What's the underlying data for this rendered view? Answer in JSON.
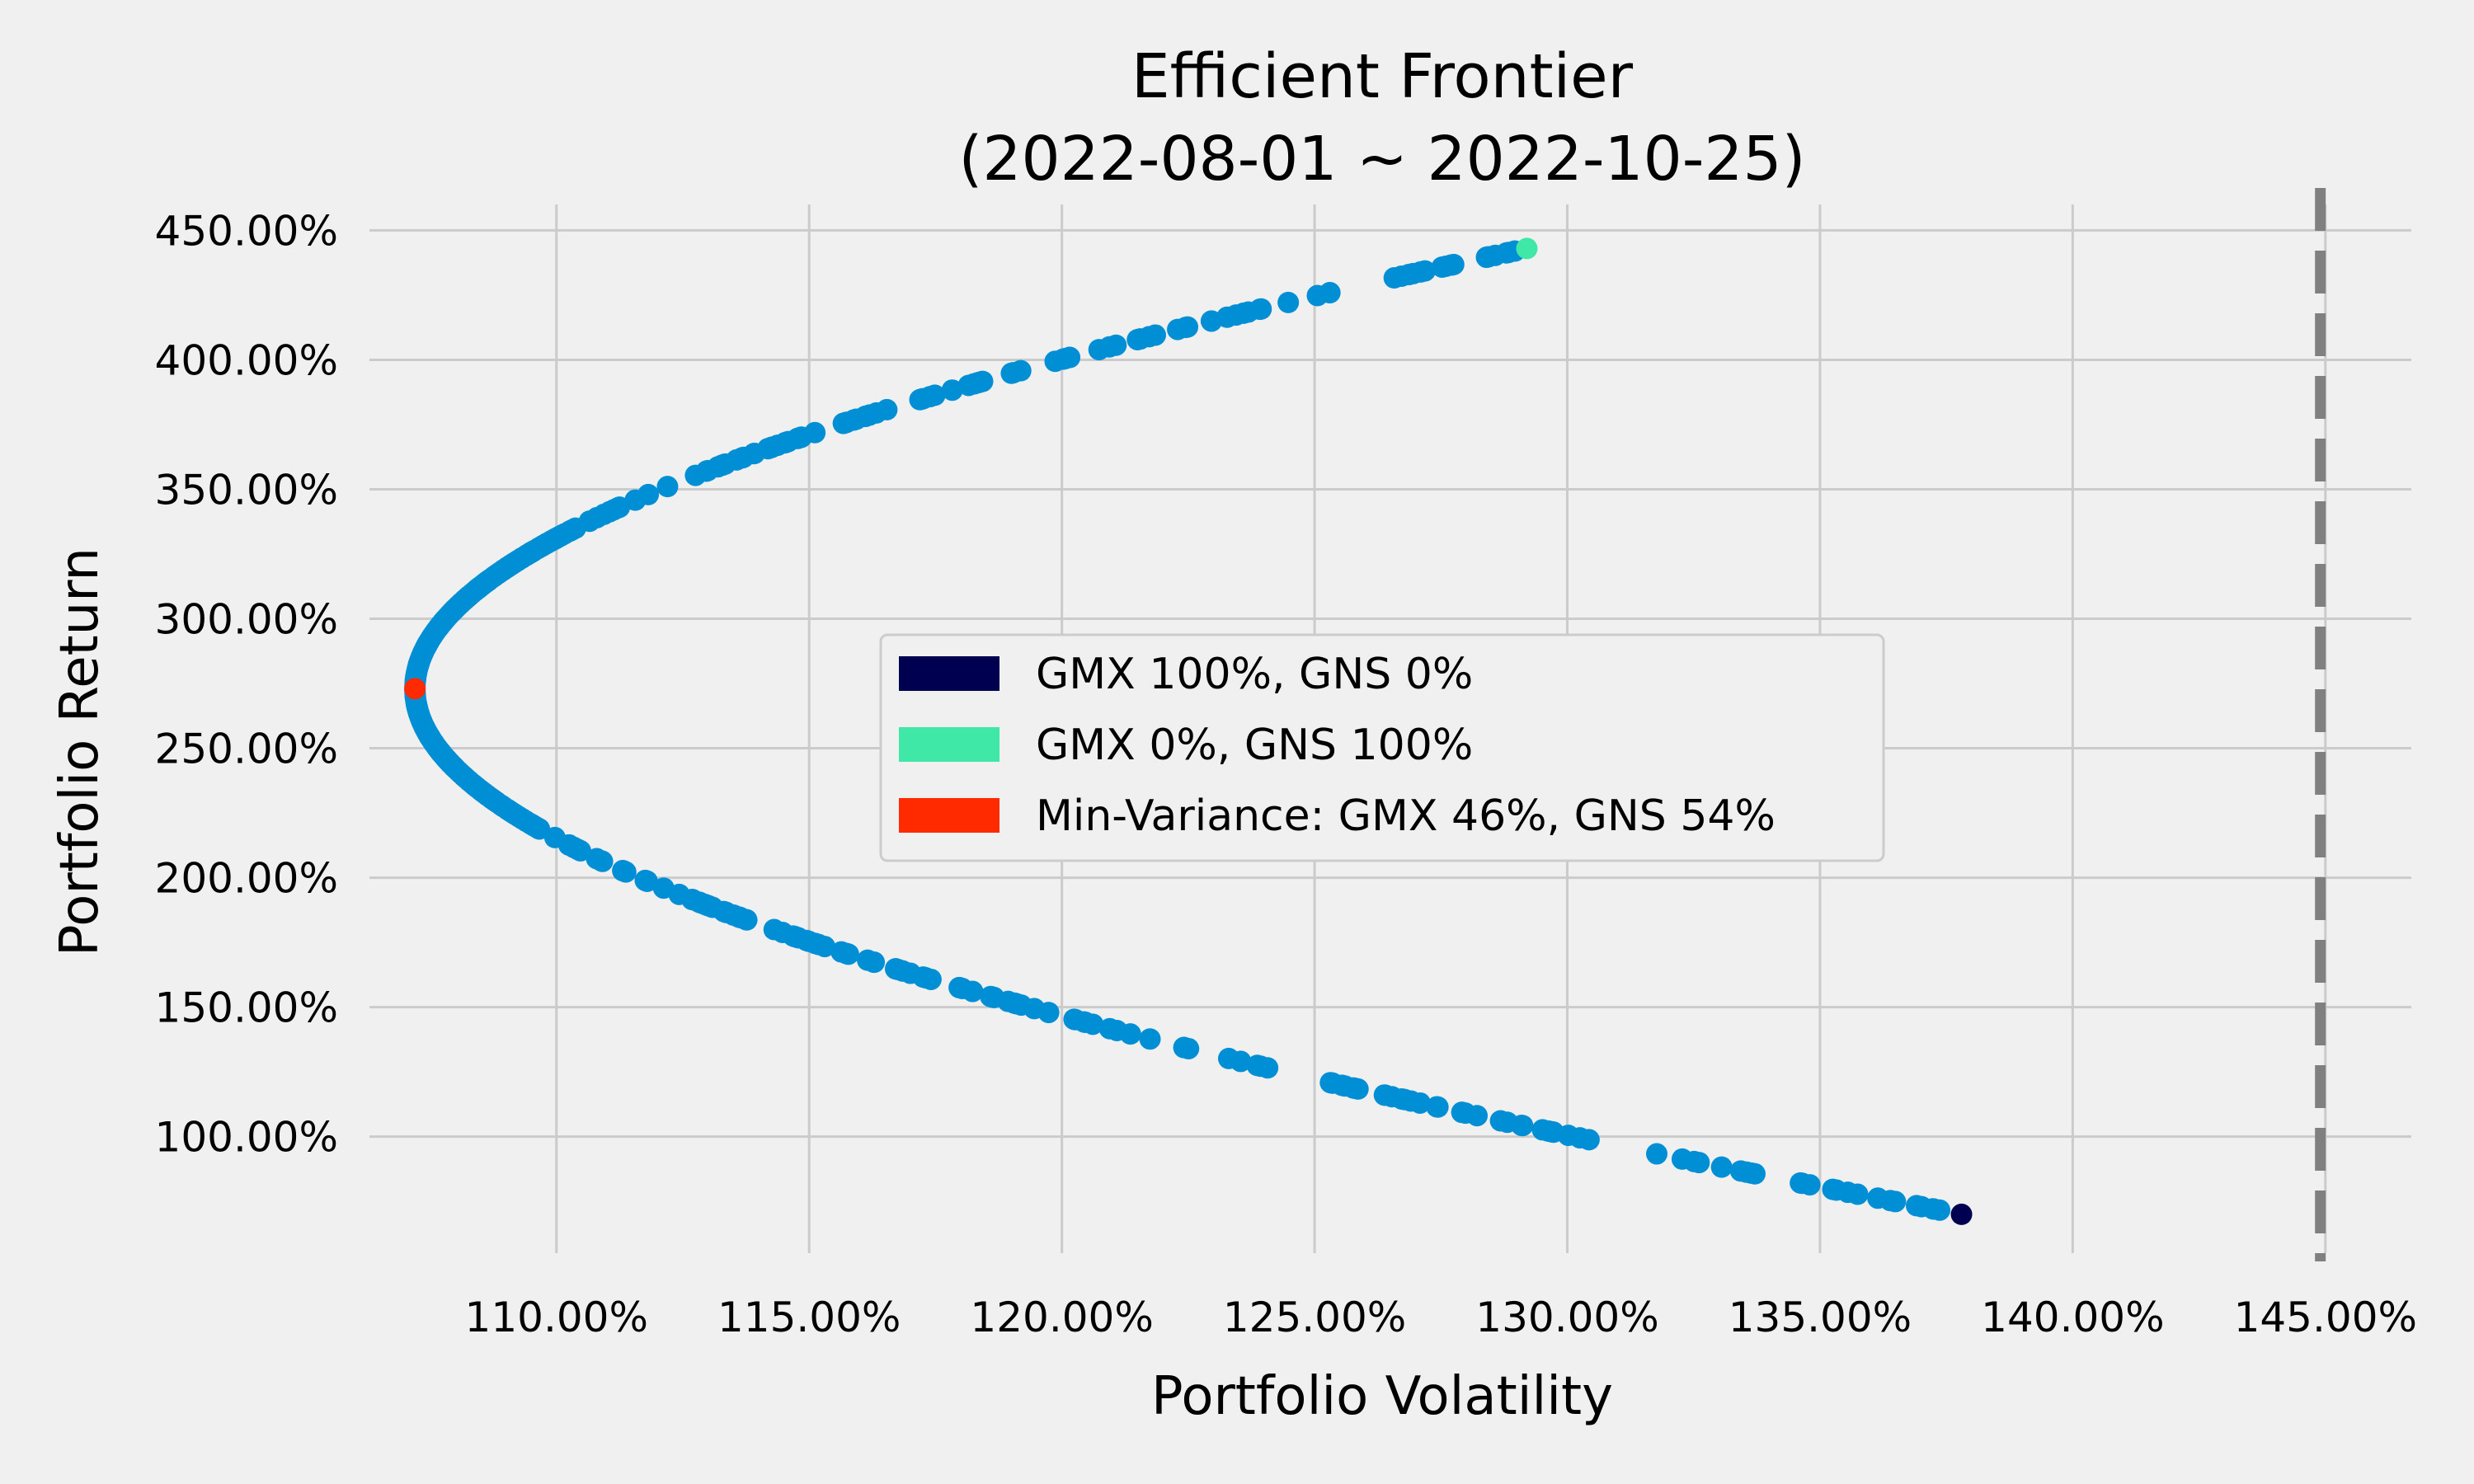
{
  "chart_data": {
    "type": "scatter",
    "title_line1": "Efficient Frontier",
    "title_line2": "(2022-08-01 ~ 2022-10-25)",
    "xlabel": "Portfolio Volatility",
    "ylabel": "Portfolio Return",
    "xlim": [
      1.063,
      1.467
    ],
    "ylim": [
      0.55,
      4.6
    ],
    "x_ticks": [
      1.1,
      1.15,
      1.2,
      1.25,
      1.3,
      1.35,
      1.4,
      1.45
    ],
    "x_tick_labels": [
      "110.00%",
      "115.00%",
      "120.00%",
      "125.00%",
      "130.00%",
      "135.00%",
      "140.00%",
      "145.00%"
    ],
    "y_ticks": [
      1.0,
      1.5,
      2.0,
      2.5,
      3.0,
      3.5,
      4.0,
      4.5
    ],
    "y_tick_labels": [
      "100.00%",
      "150.00%",
      "200.00%",
      "250.00%",
      "300.00%",
      "350.00%",
      "400.00%",
      "450.00%"
    ],
    "grid": true,
    "frontier_color": "#008fd5",
    "frontier": {
      "min_variance_volatility": 1.072,
      "min_variance_return": 2.73,
      "return_min": 0.7,
      "return_max": 4.43,
      "point_count": 400
    },
    "highlighted_points": [
      {
        "label": "GMX 100%, GNS 0%",
        "volatility": 1.378,
        "return": 0.7,
        "color": "#000050"
      },
      {
        "label": "GMX 0%, GNS 100%",
        "volatility": 1.292,
        "return": 4.43,
        "color": "#3fe8a6"
      },
      {
        "label": "Min-Variance: GMX 46%, GNS 54%",
        "volatility": 1.072,
        "return": 2.73,
        "color": "#ff2a00"
      }
    ],
    "reference_line": {
      "volatility": 1.449,
      "style": "dashed",
      "color": "#808080"
    },
    "legend": {
      "placement": "center"
    }
  }
}
